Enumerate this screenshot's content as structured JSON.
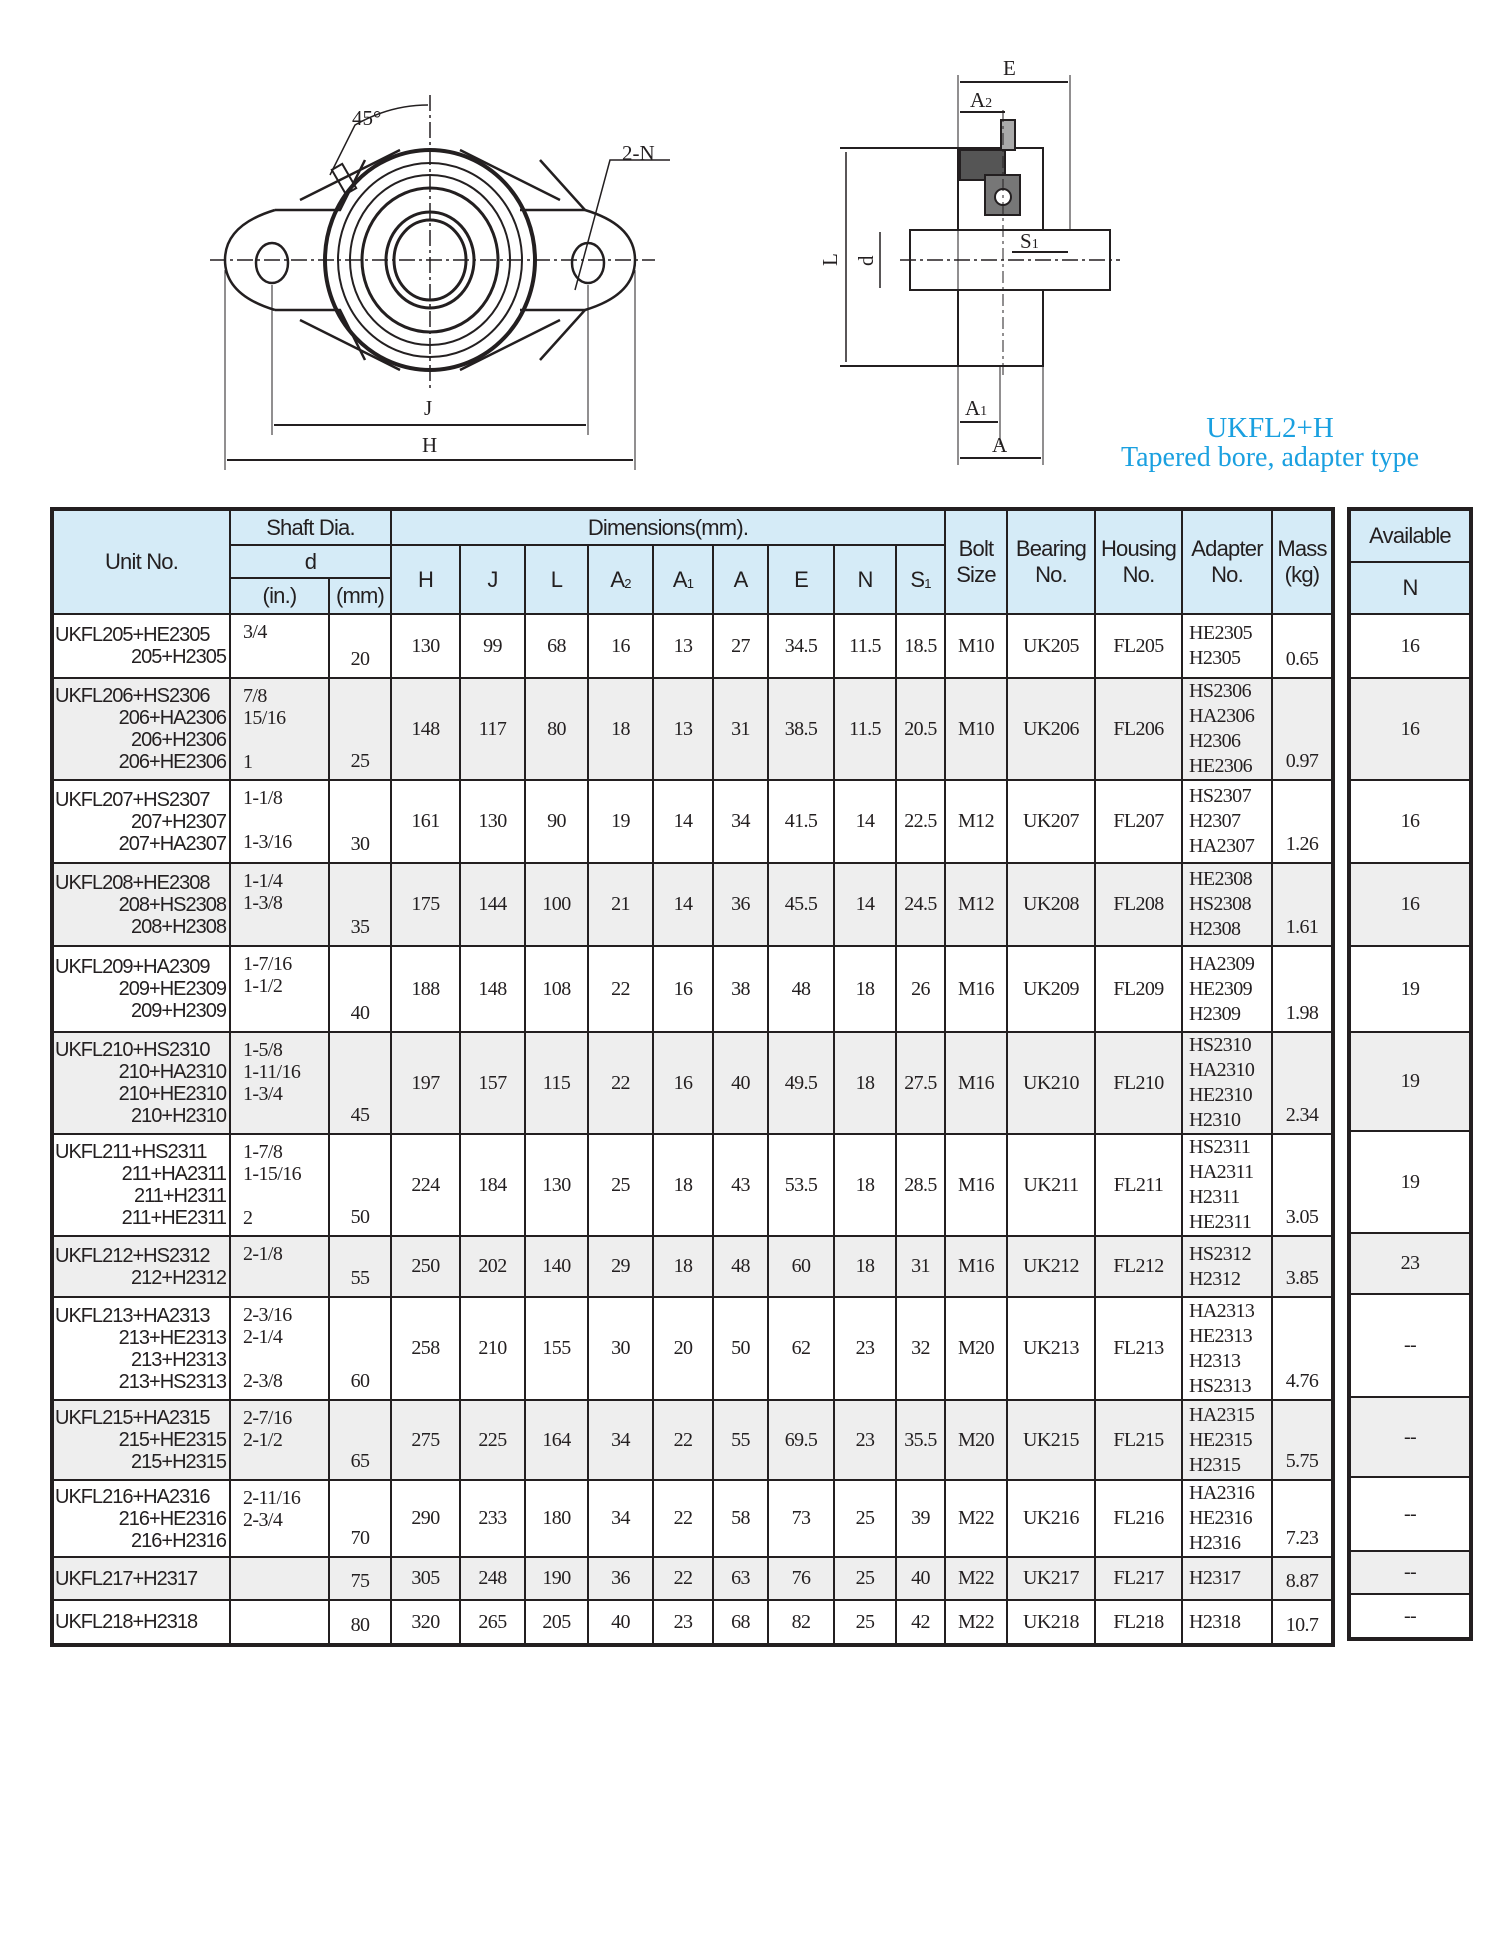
{
  "title": {
    "model": "UKFL2+H",
    "subtitle": "Tapered bore, adapter type"
  },
  "drawing_labels": {
    "angle": "45°",
    "holes": "2-N",
    "J": "J",
    "H": "H",
    "E": "E",
    "A2": "A2",
    "L": "L",
    "d": "d",
    "S1": "S1",
    "A1": "A1",
    "A": "A"
  },
  "header": {
    "unit_no": "Unit No.",
    "shaft_dia": "Shaft Dia.",
    "d": "d",
    "inch": "(in.)",
    "mm": "(mm)",
    "dimensions": "Dimensions(mm).",
    "dim_cols": [
      "H",
      "J",
      "L",
      "A2",
      "A1",
      "A",
      "E",
      "N",
      "S1"
    ],
    "bolt_size": "Bolt Size",
    "bearing_no": "Bearing No.",
    "housing_no": "Housing No.",
    "adapter_no": "Adapter No.",
    "mass": "Mass (kg)",
    "available": "Available",
    "available_sub": "N"
  },
  "rows": [
    {
      "units": [
        "UKFL205+HE2305",
        "205+H2305"
      ],
      "inch": [
        "3/4"
      ],
      "mm": "20",
      "dims": [
        "130",
        "99",
        "68",
        "16",
        "13",
        "27",
        "34.5",
        "11.5",
        "18.5"
      ],
      "bolt": "M10",
      "bearing": "UK205",
      "housing": "FL205",
      "adapter": [
        "HE2305",
        "H2305"
      ],
      "mass": "0.65",
      "available": "16"
    },
    {
      "units": [
        "UKFL206+HS2306",
        "206+HA2306",
        "206+H2306",
        "206+HE2306"
      ],
      "inch": [
        "7/8",
        "15/16",
        "",
        "1"
      ],
      "mm": "25",
      "dims": [
        "148",
        "117",
        "80",
        "18",
        "13",
        "31",
        "38.5",
        "11.5",
        "20.5"
      ],
      "bolt": "M10",
      "bearing": "UK206",
      "housing": "FL206",
      "adapter": [
        "HS2306",
        "HA2306",
        "H2306",
        "HE2306"
      ],
      "mass": "0.97",
      "available": "16"
    },
    {
      "units": [
        "UKFL207+HS2307",
        "207+H2307",
        "207+HA2307"
      ],
      "inch": [
        "1-1/8",
        "",
        "1-3/16"
      ],
      "mm": "30",
      "dims": [
        "161",
        "130",
        "90",
        "19",
        "14",
        "34",
        "41.5",
        "14",
        "22.5"
      ],
      "bolt": "M12",
      "bearing": "UK207",
      "housing": "FL207",
      "adapter": [
        "HS2307",
        "H2307",
        "HA2307"
      ],
      "mass": "1.26",
      "available": "16"
    },
    {
      "units": [
        "UKFL208+HE2308",
        "208+HS2308",
        "208+H2308"
      ],
      "inch": [
        "1-1/4",
        "1-3/8"
      ],
      "mm": "35",
      "dims": [
        "175",
        "144",
        "100",
        "21",
        "14",
        "36",
        "45.5",
        "14",
        "24.5"
      ],
      "bolt": "M12",
      "bearing": "UK208",
      "housing": "FL208",
      "adapter": [
        "HE2308",
        "HS2308",
        "H2308"
      ],
      "mass": "1.61",
      "available": "16"
    },
    {
      "units": [
        "UKFL209+HA2309",
        "209+HE2309",
        "209+H2309"
      ],
      "inch": [
        "1-7/16",
        "1-1/2"
      ],
      "mm": "40",
      "dims": [
        "188",
        "148",
        "108",
        "22",
        "16",
        "38",
        "48",
        "18",
        "26"
      ],
      "bolt": "M16",
      "bearing": "UK209",
      "housing": "FL209",
      "adapter": [
        "HA2309",
        "HE2309",
        "H2309"
      ],
      "mass": "1.98",
      "available": "19"
    },
    {
      "units": [
        "UKFL210+HS2310",
        "210+HA2310",
        "210+HE2310",
        "210+H2310"
      ],
      "inch": [
        "1-5/8",
        "1-11/16",
        "1-3/4"
      ],
      "mm": "45",
      "dims": [
        "197",
        "157",
        "115",
        "22",
        "16",
        "40",
        "49.5",
        "18",
        "27.5"
      ],
      "bolt": "M16",
      "bearing": "UK210",
      "housing": "FL210",
      "adapter": [
        "HS2310",
        "HA2310",
        "HE2310",
        "H2310"
      ],
      "mass": "2.34",
      "available": "19"
    },
    {
      "units": [
        "UKFL211+HS2311",
        "211+HA2311",
        "211+H2311",
        "211+HE2311"
      ],
      "inch": [
        "1-7/8",
        "1-15/16",
        "",
        "2"
      ],
      "mm": "50",
      "dims": [
        "224",
        "184",
        "130",
        "25",
        "18",
        "43",
        "53.5",
        "18",
        "28.5"
      ],
      "bolt": "M16",
      "bearing": "UK211",
      "housing": "FL211",
      "adapter": [
        "HS2311",
        "HA2311",
        "H2311",
        "HE2311"
      ],
      "mass": "3.05",
      "available": "19"
    },
    {
      "units": [
        "UKFL212+HS2312",
        "212+H2312"
      ],
      "inch": [
        "2-1/8"
      ],
      "mm": "55",
      "dims": [
        "250",
        "202",
        "140",
        "29",
        "18",
        "48",
        "60",
        "18",
        "31"
      ],
      "bolt": "M16",
      "bearing": "UK212",
      "housing": "FL212",
      "adapter": [
        "HS2312",
        "H2312"
      ],
      "mass": "3.85",
      "available": "23"
    },
    {
      "units": [
        "UKFL213+HA2313",
        "213+HE2313",
        "213+H2313",
        "213+HS2313"
      ],
      "inch": [
        "2-3/16",
        "2-1/4",
        "",
        "2-3/8"
      ],
      "mm": "60",
      "dims": [
        "258",
        "210",
        "155",
        "30",
        "20",
        "50",
        "62",
        "23",
        "32"
      ],
      "bolt": "M20",
      "bearing": "UK213",
      "housing": "FL213",
      "adapter": [
        "HA2313",
        "HE2313",
        "H2313",
        "HS2313"
      ],
      "mass": "4.76",
      "available": "--"
    },
    {
      "units": [
        "UKFL215+HA2315",
        "215+HE2315",
        "215+H2315"
      ],
      "inch": [
        "2-7/16",
        "2-1/2"
      ],
      "mm": "65",
      "dims": [
        "275",
        "225",
        "164",
        "34",
        "22",
        "55",
        "69.5",
        "23",
        "35.5"
      ],
      "bolt": "M20",
      "bearing": "UK215",
      "housing": "FL215",
      "adapter": [
        "HA2315",
        "HE2315",
        "H2315"
      ],
      "mass": "5.75",
      "available": "--"
    },
    {
      "units": [
        "UKFL216+HA2316",
        "216+HE2316",
        "216+H2316"
      ],
      "inch": [
        "2-11/16",
        "2-3/4"
      ],
      "mm": "70",
      "dims": [
        "290",
        "233",
        "180",
        "34",
        "22",
        "58",
        "73",
        "25",
        "39"
      ],
      "bolt": "M22",
      "bearing": "UK216",
      "housing": "FL216",
      "adapter": [
        "HA2316",
        "HE2316",
        "H2316"
      ],
      "mass": "7.23",
      "available": "--"
    },
    {
      "units": [
        "UKFL217+H2317"
      ],
      "inch": [],
      "mm": "75",
      "dims": [
        "305",
        "248",
        "190",
        "36",
        "22",
        "63",
        "76",
        "25",
        "40"
      ],
      "bolt": "M22",
      "bearing": "UK217",
      "housing": "FL217",
      "adapter": [
        "H2317"
      ],
      "mass": "8.87",
      "available": "--"
    },
    {
      "units": [
        "UKFL218+H2318"
      ],
      "inch": [],
      "mm": "80",
      "dims": [
        "320",
        "265",
        "205",
        "40",
        "23",
        "68",
        "82",
        "25",
        "42"
      ],
      "bolt": "M22",
      "bearing": "UK218",
      "housing": "FL218",
      "adapter": [
        "H2318"
      ],
      "mass": "10.7",
      "available": "--"
    }
  ]
}
